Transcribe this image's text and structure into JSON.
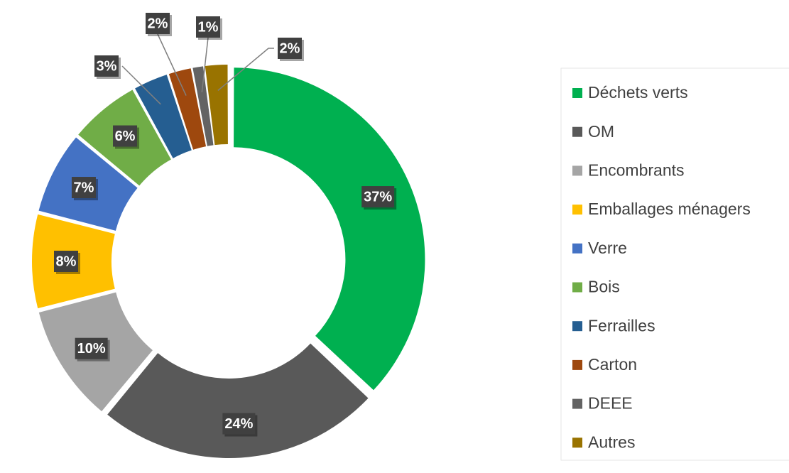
{
  "chart_data": {
    "type": "donut",
    "categories": [
      "Déchets verts",
      "OM",
      "Encombrants",
      "Emballages ménagers",
      "Verre",
      "Bois",
      "Ferrailles",
      "Carton",
      "DEEE",
      "Autres"
    ],
    "values": [
      37,
      24,
      10,
      8,
      7,
      6,
      3,
      2,
      1,
      2
    ],
    "value_labels": [
      "37%",
      "24%",
      "10%",
      "8%",
      "7%",
      "6%",
      "3%",
      "2%",
      "1%",
      "2%"
    ],
    "colors": [
      "#00b050",
      "#595959",
      "#a5a5a5",
      "#ffc000",
      "#4472c4",
      "#70ad47",
      "#255e91",
      "#9e480e",
      "#636363",
      "#997300"
    ],
    "legend": "right"
  }
}
